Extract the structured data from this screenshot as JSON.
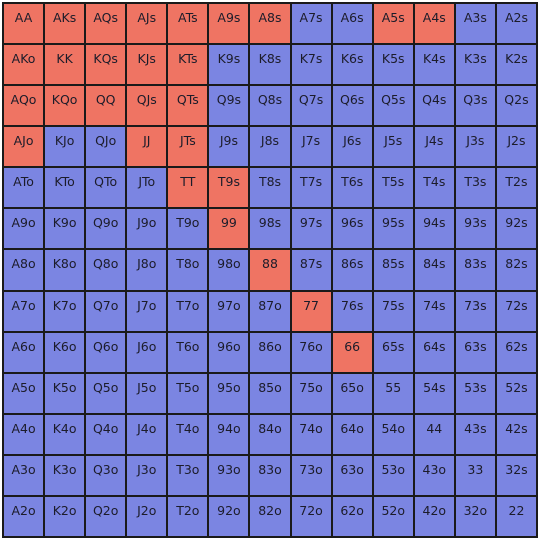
{
  "colors": {
    "raise": "#ef7463",
    "fold": "#7b85e2",
    "border": "#1a1a1a"
  },
  "grid": {
    "rows": [
      [
        {
          "label": "AA",
          "action": "raise"
        },
        {
          "label": "AKs",
          "action": "raise"
        },
        {
          "label": "AQs",
          "action": "raise"
        },
        {
          "label": "AJs",
          "action": "raise"
        },
        {
          "label": "ATs",
          "action": "raise"
        },
        {
          "label": "A9s",
          "action": "raise"
        },
        {
          "label": "A8s",
          "action": "raise"
        },
        {
          "label": "A7s",
          "action": "fold"
        },
        {
          "label": "A6s",
          "action": "fold"
        },
        {
          "label": "A5s",
          "action": "raise"
        },
        {
          "label": "A4s",
          "action": "raise"
        },
        {
          "label": "A3s",
          "action": "fold"
        },
        {
          "label": "A2s",
          "action": "fold"
        }
      ],
      [
        {
          "label": "AKo",
          "action": "raise"
        },
        {
          "label": "KK",
          "action": "raise"
        },
        {
          "label": "KQs",
          "action": "raise"
        },
        {
          "label": "KJs",
          "action": "raise"
        },
        {
          "label": "KTs",
          "action": "raise"
        },
        {
          "label": "K9s",
          "action": "fold"
        },
        {
          "label": "K8s",
          "action": "fold"
        },
        {
          "label": "K7s",
          "action": "fold"
        },
        {
          "label": "K6s",
          "action": "fold"
        },
        {
          "label": "K5s",
          "action": "fold"
        },
        {
          "label": "K4s",
          "action": "fold"
        },
        {
          "label": "K3s",
          "action": "fold"
        },
        {
          "label": "K2s",
          "action": "fold"
        }
      ],
      [
        {
          "label": "AQo",
          "action": "raise"
        },
        {
          "label": "KQo",
          "action": "raise"
        },
        {
          "label": "QQ",
          "action": "raise"
        },
        {
          "label": "QJs",
          "action": "raise"
        },
        {
          "label": "QTs",
          "action": "raise"
        },
        {
          "label": "Q9s",
          "action": "fold"
        },
        {
          "label": "Q8s",
          "action": "fold"
        },
        {
          "label": "Q7s",
          "action": "fold"
        },
        {
          "label": "Q6s",
          "action": "fold"
        },
        {
          "label": "Q5s",
          "action": "fold"
        },
        {
          "label": "Q4s",
          "action": "fold"
        },
        {
          "label": "Q3s",
          "action": "fold"
        },
        {
          "label": "Q2s",
          "action": "fold"
        }
      ],
      [
        {
          "label": "AJo",
          "action": "raise"
        },
        {
          "label": "KJo",
          "action": "fold"
        },
        {
          "label": "QJo",
          "action": "fold"
        },
        {
          "label": "JJ",
          "action": "raise"
        },
        {
          "label": "JTs",
          "action": "raise"
        },
        {
          "label": "J9s",
          "action": "fold"
        },
        {
          "label": "J8s",
          "action": "fold"
        },
        {
          "label": "J7s",
          "action": "fold"
        },
        {
          "label": "J6s",
          "action": "fold"
        },
        {
          "label": "J5s",
          "action": "fold"
        },
        {
          "label": "J4s",
          "action": "fold"
        },
        {
          "label": "J3s",
          "action": "fold"
        },
        {
          "label": "J2s",
          "action": "fold"
        }
      ],
      [
        {
          "label": "ATo",
          "action": "fold"
        },
        {
          "label": "KTo",
          "action": "fold"
        },
        {
          "label": "QTo",
          "action": "fold"
        },
        {
          "label": "JTo",
          "action": "fold"
        },
        {
          "label": "TT",
          "action": "raise"
        },
        {
          "label": "T9s",
          "action": "raise"
        },
        {
          "label": "T8s",
          "action": "fold"
        },
        {
          "label": "T7s",
          "action": "fold"
        },
        {
          "label": "T6s",
          "action": "fold"
        },
        {
          "label": "T5s",
          "action": "fold"
        },
        {
          "label": "T4s",
          "action": "fold"
        },
        {
          "label": "T3s",
          "action": "fold"
        },
        {
          "label": "T2s",
          "action": "fold"
        }
      ],
      [
        {
          "label": "A9o",
          "action": "fold"
        },
        {
          "label": "K9o",
          "action": "fold"
        },
        {
          "label": "Q9o",
          "action": "fold"
        },
        {
          "label": "J9o",
          "action": "fold"
        },
        {
          "label": "T9o",
          "action": "fold"
        },
        {
          "label": "99",
          "action": "raise"
        },
        {
          "label": "98s",
          "action": "fold"
        },
        {
          "label": "97s",
          "action": "fold"
        },
        {
          "label": "96s",
          "action": "fold"
        },
        {
          "label": "95s",
          "action": "fold"
        },
        {
          "label": "94s",
          "action": "fold"
        },
        {
          "label": "93s",
          "action": "fold"
        },
        {
          "label": "92s",
          "action": "fold"
        }
      ],
      [
        {
          "label": "A8o",
          "action": "fold"
        },
        {
          "label": "K8o",
          "action": "fold"
        },
        {
          "label": "Q8o",
          "action": "fold"
        },
        {
          "label": "J8o",
          "action": "fold"
        },
        {
          "label": "T8o",
          "action": "fold"
        },
        {
          "label": "98o",
          "action": "fold"
        },
        {
          "label": "88",
          "action": "raise"
        },
        {
          "label": "87s",
          "action": "fold"
        },
        {
          "label": "86s",
          "action": "fold"
        },
        {
          "label": "85s",
          "action": "fold"
        },
        {
          "label": "84s",
          "action": "fold"
        },
        {
          "label": "83s",
          "action": "fold"
        },
        {
          "label": "82s",
          "action": "fold"
        }
      ],
      [
        {
          "label": "A7o",
          "action": "fold"
        },
        {
          "label": "K7o",
          "action": "fold"
        },
        {
          "label": "Q7o",
          "action": "fold"
        },
        {
          "label": "J7o",
          "action": "fold"
        },
        {
          "label": "T7o",
          "action": "fold"
        },
        {
          "label": "97o",
          "action": "fold"
        },
        {
          "label": "87o",
          "action": "fold"
        },
        {
          "label": "77",
          "action": "raise"
        },
        {
          "label": "76s",
          "action": "fold"
        },
        {
          "label": "75s",
          "action": "fold"
        },
        {
          "label": "74s",
          "action": "fold"
        },
        {
          "label": "73s",
          "action": "fold"
        },
        {
          "label": "72s",
          "action": "fold"
        }
      ],
      [
        {
          "label": "A6o",
          "action": "fold"
        },
        {
          "label": "K6o",
          "action": "fold"
        },
        {
          "label": "Q6o",
          "action": "fold"
        },
        {
          "label": "J6o",
          "action": "fold"
        },
        {
          "label": "T6o",
          "action": "fold"
        },
        {
          "label": "96o",
          "action": "fold"
        },
        {
          "label": "86o",
          "action": "fold"
        },
        {
          "label": "76o",
          "action": "fold"
        },
        {
          "label": "66",
          "action": "raise"
        },
        {
          "label": "65s",
          "action": "fold"
        },
        {
          "label": "64s",
          "action": "fold"
        },
        {
          "label": "63s",
          "action": "fold"
        },
        {
          "label": "62s",
          "action": "fold"
        }
      ],
      [
        {
          "label": "A5o",
          "action": "fold"
        },
        {
          "label": "K5o",
          "action": "fold"
        },
        {
          "label": "Q5o",
          "action": "fold"
        },
        {
          "label": "J5o",
          "action": "fold"
        },
        {
          "label": "T5o",
          "action": "fold"
        },
        {
          "label": "95o",
          "action": "fold"
        },
        {
          "label": "85o",
          "action": "fold"
        },
        {
          "label": "75o",
          "action": "fold"
        },
        {
          "label": "65o",
          "action": "fold"
        },
        {
          "label": "55",
          "action": "fold"
        },
        {
          "label": "54s",
          "action": "fold"
        },
        {
          "label": "53s",
          "action": "fold"
        },
        {
          "label": "52s",
          "action": "fold"
        }
      ],
      [
        {
          "label": "A4o",
          "action": "fold"
        },
        {
          "label": "K4o",
          "action": "fold"
        },
        {
          "label": "Q4o",
          "action": "fold"
        },
        {
          "label": "J4o",
          "action": "fold"
        },
        {
          "label": "T4o",
          "action": "fold"
        },
        {
          "label": "94o",
          "action": "fold"
        },
        {
          "label": "84o",
          "action": "fold"
        },
        {
          "label": "74o",
          "action": "fold"
        },
        {
          "label": "64o",
          "action": "fold"
        },
        {
          "label": "54o",
          "action": "fold"
        },
        {
          "label": "44",
          "action": "fold"
        },
        {
          "label": "43s",
          "action": "fold"
        },
        {
          "label": "42s",
          "action": "fold"
        }
      ],
      [
        {
          "label": "A3o",
          "action": "fold"
        },
        {
          "label": "K3o",
          "action": "fold"
        },
        {
          "label": "Q3o",
          "action": "fold"
        },
        {
          "label": "J3o",
          "action": "fold"
        },
        {
          "label": "T3o",
          "action": "fold"
        },
        {
          "label": "93o",
          "action": "fold"
        },
        {
          "label": "83o",
          "action": "fold"
        },
        {
          "label": "73o",
          "action": "fold"
        },
        {
          "label": "63o",
          "action": "fold"
        },
        {
          "label": "53o",
          "action": "fold"
        },
        {
          "label": "43o",
          "action": "fold"
        },
        {
          "label": "33",
          "action": "fold"
        },
        {
          "label": "32s",
          "action": "fold"
        }
      ],
      [
        {
          "label": "A2o",
          "action": "fold"
        },
        {
          "label": "K2o",
          "action": "fold"
        },
        {
          "label": "Q2o",
          "action": "fold"
        },
        {
          "label": "J2o",
          "action": "fold"
        },
        {
          "label": "T2o",
          "action": "fold"
        },
        {
          "label": "92o",
          "action": "fold"
        },
        {
          "label": "82o",
          "action": "fold"
        },
        {
          "label": "72o",
          "action": "fold"
        },
        {
          "label": "62o",
          "action": "fold"
        },
        {
          "label": "52o",
          "action": "fold"
        },
        {
          "label": "42o",
          "action": "fold"
        },
        {
          "label": "32o",
          "action": "fold"
        },
        {
          "label": "22",
          "action": "fold"
        }
      ]
    ]
  }
}
